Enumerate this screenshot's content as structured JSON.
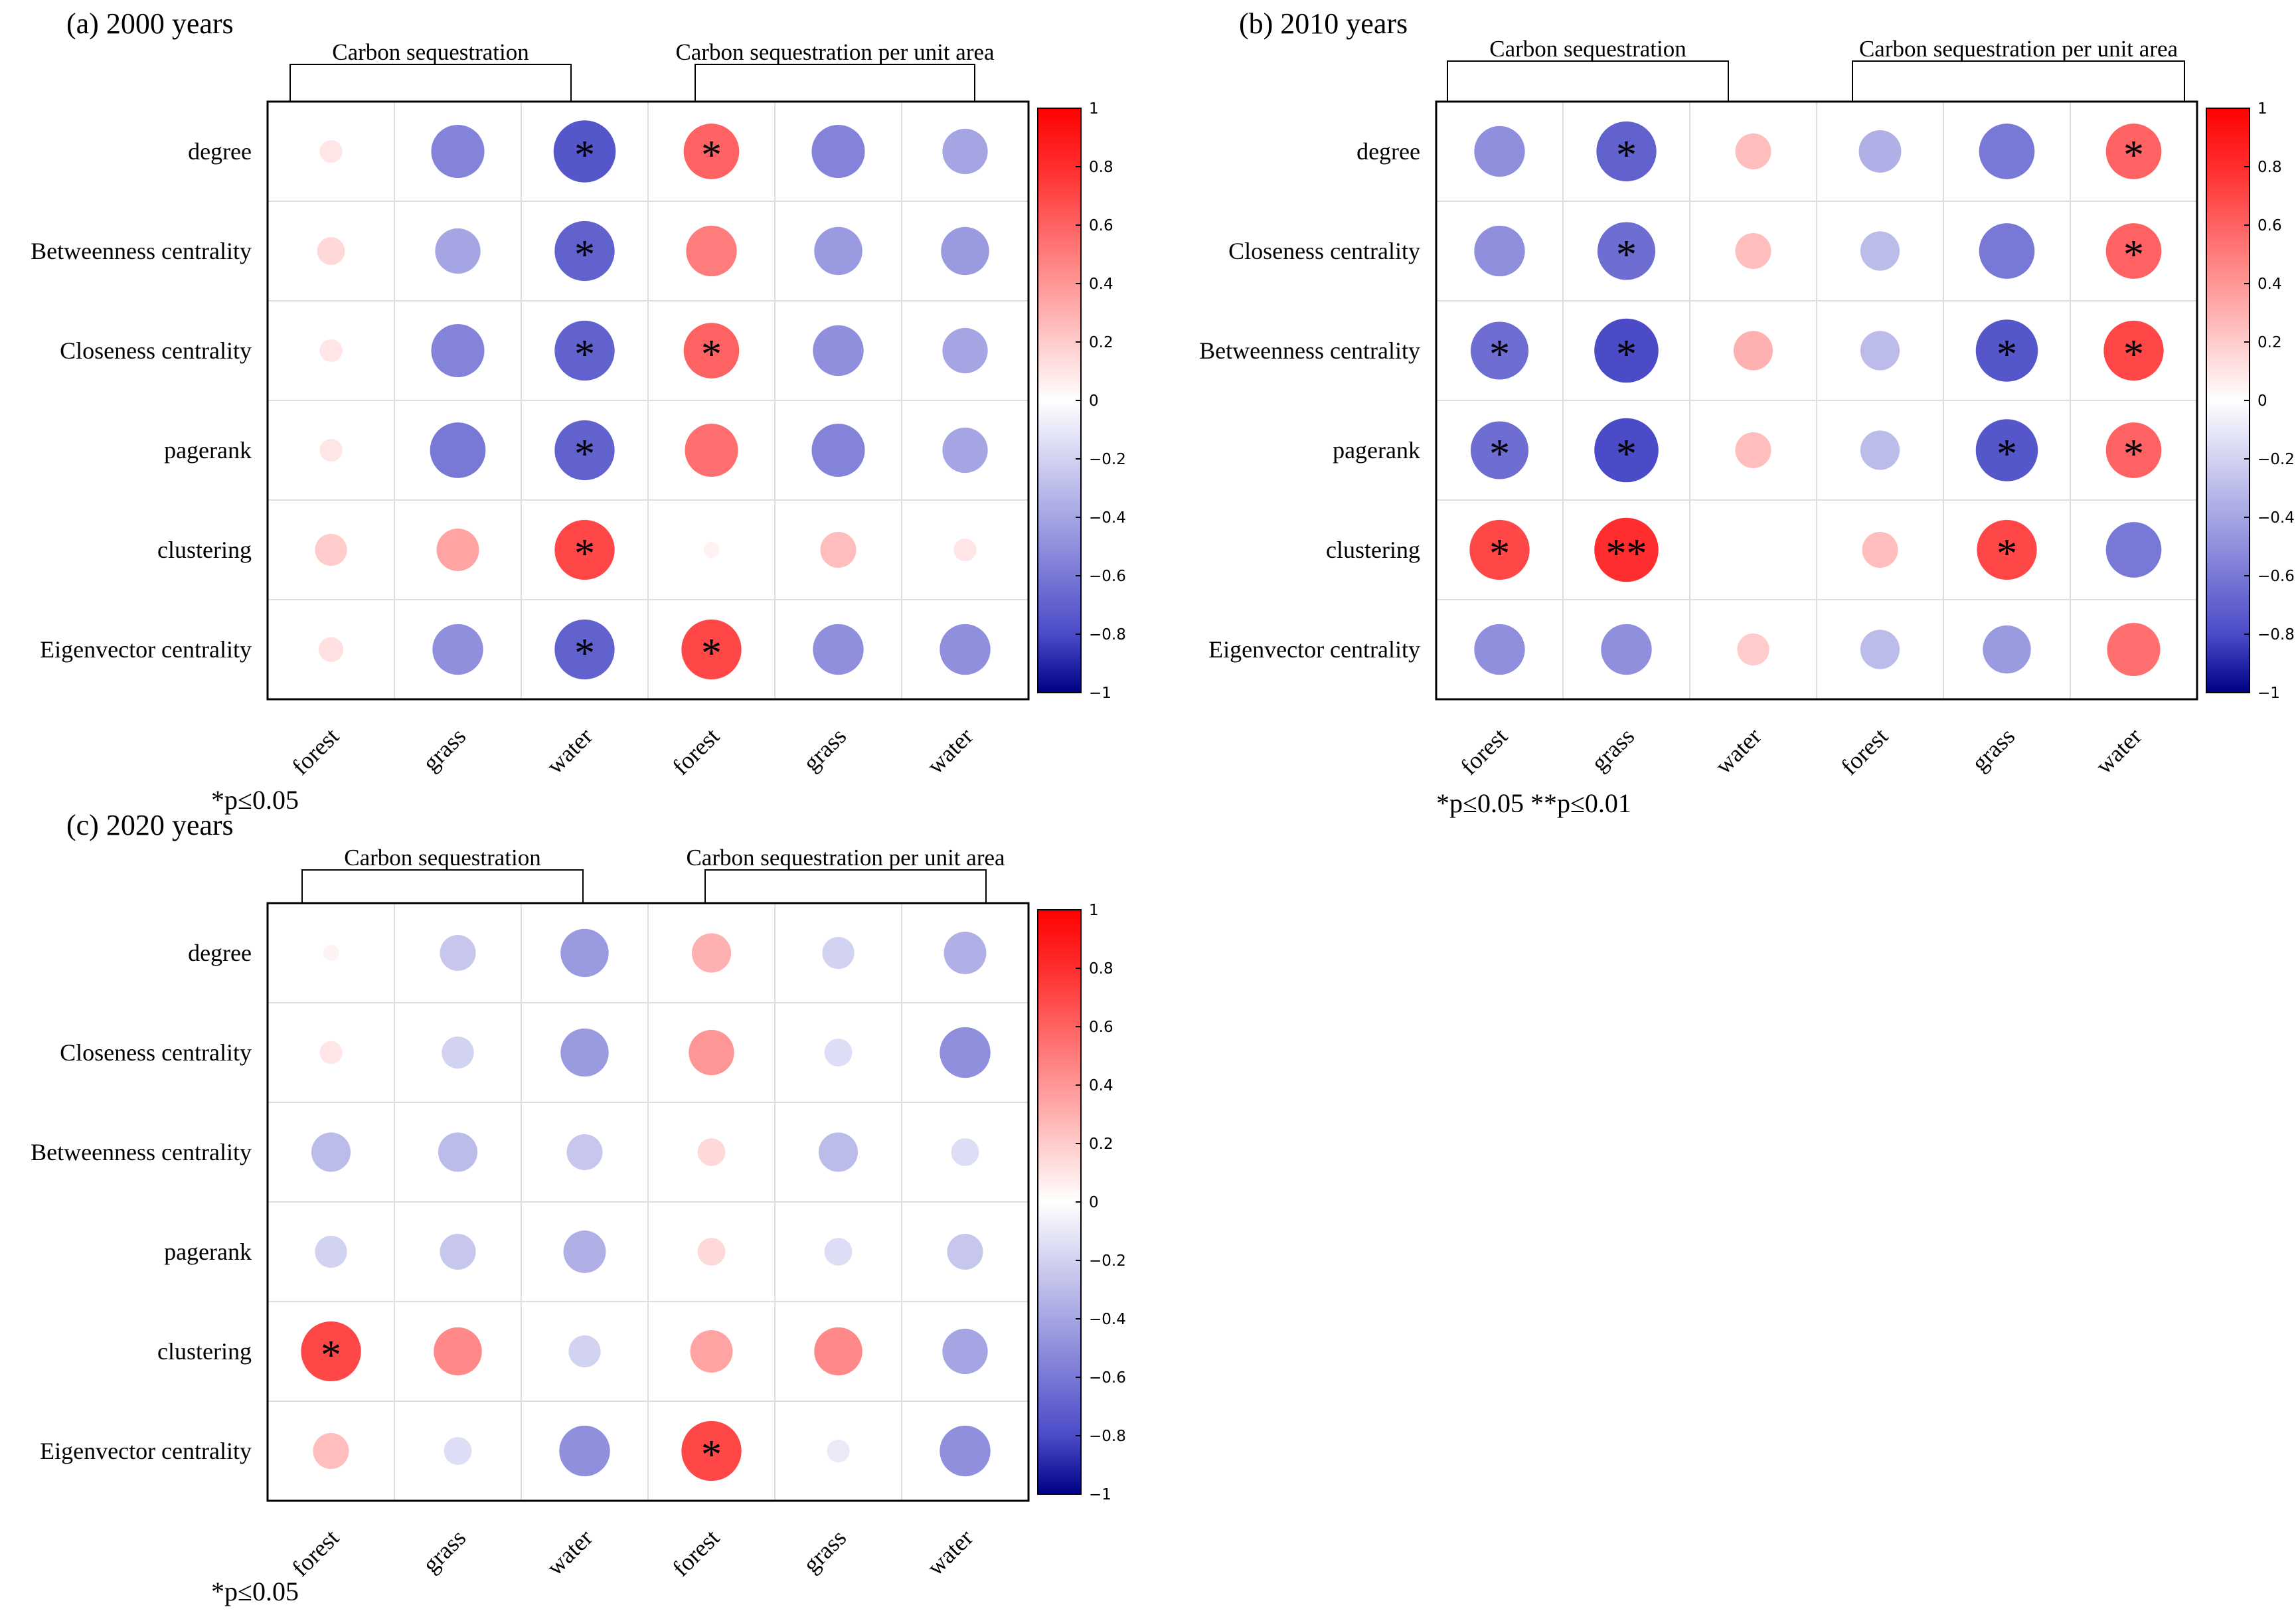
{
  "chart_data": [
    {
      "type": "heatmap",
      "panel_label": "(a)  2000  years",
      "group_labels": [
        "Carbon sequestration",
        "Carbon sequestration per unit area"
      ],
      "row_labels": [
        "degree",
        "Betweenness centrality",
        "Closeness centrality",
        "pagerank",
        "clustering",
        "Eigenvector centrality"
      ],
      "column_labels": [
        "forest",
        "grass",
        "water",
        "forest",
        "grass",
        "water"
      ],
      "values": [
        [
          0.1,
          -0.55,
          -0.75,
          0.6,
          -0.55,
          -0.4
        ],
        [
          0.15,
          -0.4,
          -0.7,
          0.5,
          -0.45,
          -0.45
        ],
        [
          0.1,
          -0.55,
          -0.7,
          0.6,
          -0.5,
          -0.4
        ],
        [
          0.1,
          -0.6,
          -0.7,
          0.55,
          -0.55,
          -0.4
        ],
        [
          0.2,
          0.35,
          0.7,
          0.05,
          0.25,
          0.1
        ],
        [
          0.12,
          -0.5,
          -0.7,
          0.7,
          -0.5,
          -0.5
        ]
      ],
      "marks": [
        [
          "",
          "",
          "*",
          "*",
          "",
          ""
        ],
        [
          "",
          "",
          "*",
          "",
          "",
          ""
        ],
        [
          "",
          "",
          "*",
          "*",
          "",
          ""
        ],
        [
          "",
          "",
          "*",
          "",
          "",
          ""
        ],
        [
          "",
          "",
          "*",
          "",
          "",
          ""
        ],
        [
          "",
          "",
          "*",
          "*",
          "",
          ""
        ]
      ],
      "significance_legend": "*p≤0.05",
      "colorbar": {
        "range": [
          -1,
          1
        ],
        "tick_labels": [
          "1",
          "0.8",
          "0.6",
          "0.4",
          "0.2",
          "0",
          "−0.2",
          "−0.4",
          "−0.6",
          "−0.8",
          "−1"
        ]
      }
    },
    {
      "type": "heatmap",
      "panel_label": "(b)  2010  years",
      "group_labels": [
        "Carbon sequestration",
        "Carbon sequestration per unit area"
      ],
      "row_labels": [
        "degree",
        "Closeness centrality",
        "Betweenness centrality",
        "pagerank",
        "clustering",
        "Eigenvector centrality"
      ],
      "column_labels": [
        "forest",
        "grass",
        "water",
        "forest",
        "grass",
        "water"
      ],
      "values": [
        [
          -0.5,
          -0.7,
          0.25,
          -0.35,
          -0.6,
          0.6
        ],
        [
          -0.5,
          -0.65,
          0.25,
          -0.3,
          -0.6,
          0.6
        ],
        [
          -0.65,
          -0.8,
          0.3,
          -0.3,
          -0.75,
          0.7
        ],
        [
          -0.65,
          -0.8,
          0.25,
          -0.3,
          -0.75,
          0.6
        ],
        [
          0.7,
          0.8,
          0.0,
          0.25,
          0.7,
          -0.6
        ],
        [
          -0.5,
          -0.5,
          0.2,
          -0.3,
          -0.45,
          0.55
        ]
      ],
      "marks": [
        [
          "",
          "*",
          "",
          "",
          "",
          "*"
        ],
        [
          "",
          "*",
          "",
          "",
          "",
          "*"
        ],
        [
          "*",
          "*",
          "",
          "",
          "*",
          "*"
        ],
        [
          "*",
          "*",
          "",
          "",
          "*",
          "*"
        ],
        [
          "*",
          "**",
          "",
          "",
          "*",
          ""
        ],
        [
          "",
          "",
          "",
          "",
          "",
          ""
        ]
      ],
      "significance_legend": "*p≤0.05   **p≤0.01",
      "colorbar": {
        "range": [
          -1,
          1
        ],
        "tick_labels": [
          "1",
          "0.8",
          "0.6",
          "0.4",
          "0.2",
          "0",
          "−0.2",
          "−0.4",
          "−0.6",
          "−0.8",
          "−1"
        ]
      }
    },
    {
      "type": "heatmap",
      "panel_label": "(c)  2020  years",
      "group_labels": [
        "Carbon sequestration",
        "Carbon sequestration per unit area"
      ],
      "row_labels": [
        "degree",
        "Closeness centrality",
        "Betweenness centrality",
        "pagerank",
        "clustering",
        "Eigenvector centrality"
      ],
      "column_labels": [
        "forest",
        "grass",
        "water",
        "forest",
        "grass",
        "water"
      ],
      "values": [
        [
          0.05,
          -0.25,
          -0.45,
          0.3,
          -0.2,
          -0.35
        ],
        [
          0.1,
          -0.2,
          -0.45,
          0.4,
          -0.15,
          -0.5
        ],
        [
          -0.3,
          -0.3,
          -0.25,
          0.15,
          -0.3,
          -0.15
        ],
        [
          -0.2,
          -0.25,
          -0.35,
          0.15,
          -0.15,
          -0.25
        ],
        [
          0.7,
          0.45,
          -0.2,
          0.35,
          0.45,
          -0.4
        ],
        [
          0.25,
          -0.15,
          -0.5,
          0.7,
          -0.1,
          -0.5
        ]
      ],
      "marks": [
        [
          "",
          "",
          "",
          "",
          "",
          ""
        ],
        [
          "",
          "",
          "",
          "",
          "",
          ""
        ],
        [
          "",
          "",
          "",
          "",
          "",
          ""
        ],
        [
          "",
          "",
          "",
          "",
          "",
          ""
        ],
        [
          "*",
          "",
          "",
          "",
          "",
          ""
        ],
        [
          "",
          "",
          "",
          "*",
          "",
          ""
        ]
      ],
      "significance_legend": "*p≤0.05",
      "colorbar": {
        "range": [
          -1,
          1
        ],
        "tick_labels": [
          "1",
          "0.8",
          "0.6",
          "0.4",
          "0.2",
          "0",
          "−0.2",
          "−0.4",
          "−0.6",
          "−0.8",
          "−1"
        ]
      }
    }
  ]
}
